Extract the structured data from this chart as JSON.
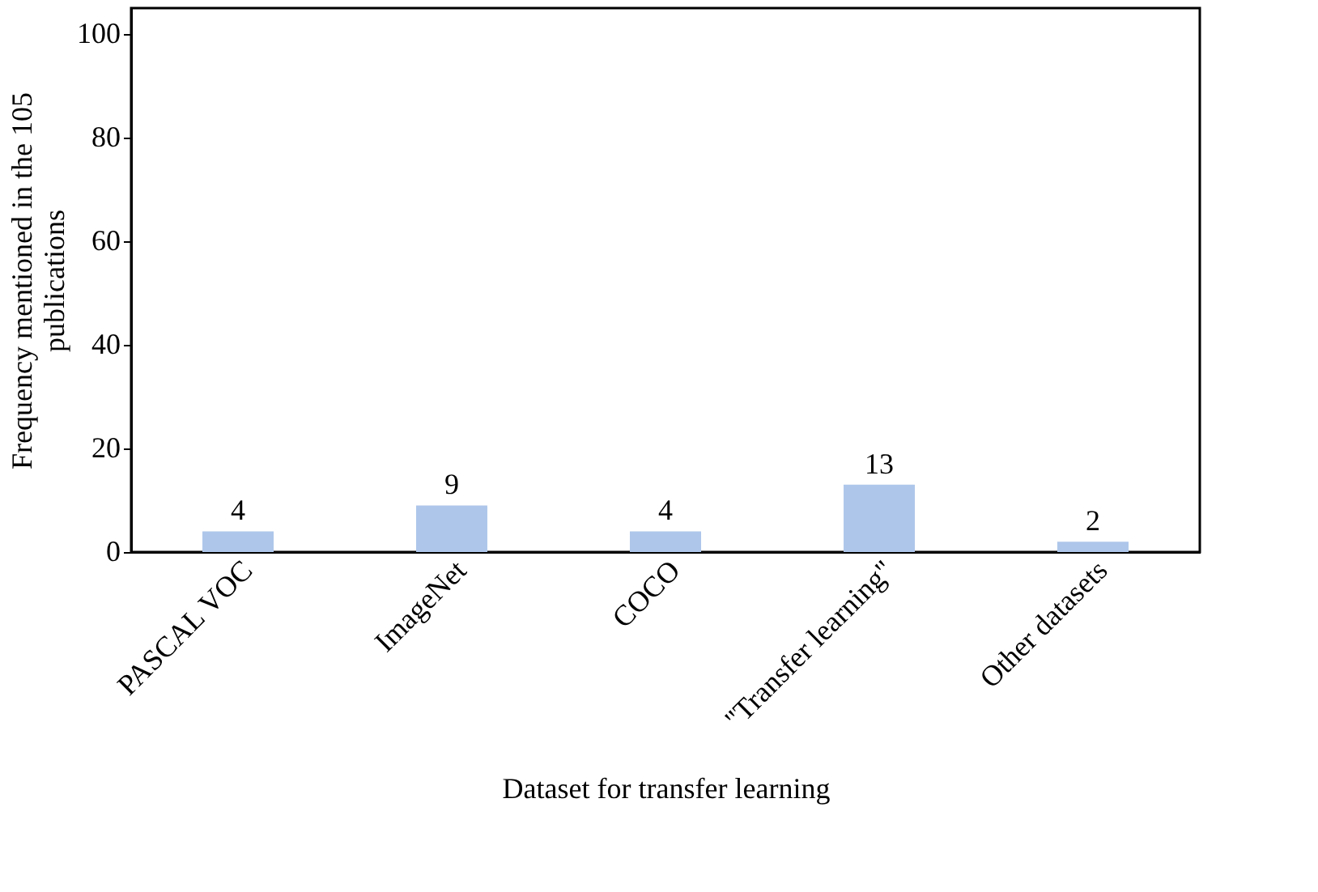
{
  "chart_data": {
    "type": "bar",
    "xlabel": "Dataset for transfer learning",
    "ylabel": "Frequency mentioned in the 105 publications",
    "categories": [
      "PASCAL VOC",
      "ImageNet",
      "COCO",
      "\"Transfer learning\"",
      "Other datasets"
    ],
    "values": [
      4,
      9,
      4,
      13,
      2
    ],
    "color": "#aec6ea",
    "ylim": [
      0,
      105
    ],
    "yticks": [
      0,
      20,
      40,
      60,
      80,
      100
    ],
    "grid": false,
    "data_labels": true
  }
}
